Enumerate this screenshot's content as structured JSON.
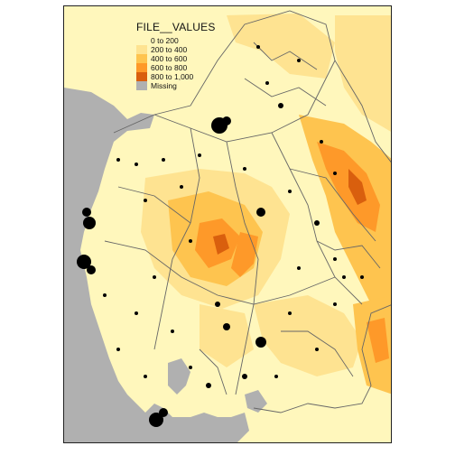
{
  "legend": {
    "title": "FILE__VALUES",
    "classes": [
      {
        "label": "0 to 200",
        "color": "#fff7bc"
      },
      {
        "label": "200 to 400",
        "color": "#fee391"
      },
      {
        "label": "400 to 600",
        "color": "#fec44f"
      },
      {
        "label": "600 to 800",
        "color": "#fe9929"
      },
      {
        "label": "800 to 1,000",
        "color": "#d95f0e"
      },
      {
        "label": "Missing",
        "color": "#b0b0b0"
      }
    ]
  },
  "colors": {
    "sea": "#b0b0b0",
    "boundary": "#666666",
    "point": "#000000"
  }
}
